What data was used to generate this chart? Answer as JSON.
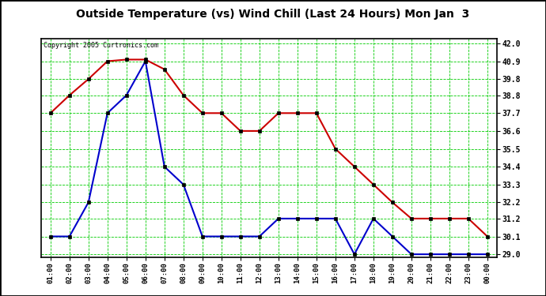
{
  "title": "Outside Temperature (vs) Wind Chill (Last 24 Hours) Mon Jan  3",
  "copyright": "Copyright 2005 Curtronics.com",
  "x_labels": [
    "01:00",
    "02:00",
    "03:00",
    "04:00",
    "05:00",
    "06:00",
    "07:00",
    "08:00",
    "09:00",
    "10:00",
    "11:00",
    "12:00",
    "13:00",
    "14:00",
    "15:00",
    "16:00",
    "17:00",
    "18:00",
    "19:00",
    "20:00",
    "21:00",
    "22:00",
    "23:00",
    "00:00"
  ],
  "outside_temp": [
    37.7,
    38.8,
    39.8,
    40.9,
    41.0,
    41.0,
    40.4,
    38.8,
    37.7,
    37.7,
    36.6,
    36.6,
    37.7,
    37.7,
    37.7,
    35.5,
    34.4,
    33.3,
    32.2,
    31.2,
    31.2,
    31.2,
    31.2,
    30.1
  ],
  "wind_chill": [
    30.1,
    30.1,
    32.2,
    37.7,
    38.8,
    40.9,
    34.4,
    33.3,
    30.1,
    30.1,
    30.1,
    30.1,
    31.2,
    31.2,
    31.2,
    31.2,
    29.0,
    31.2,
    30.1,
    29.0,
    29.0,
    29.0,
    29.0,
    29.0
  ],
  "y_ticks": [
    29.0,
    30.1,
    31.2,
    32.2,
    33.3,
    34.4,
    35.5,
    36.6,
    37.7,
    38.8,
    39.8,
    40.9,
    42.0
  ],
  "ylim": [
    28.8,
    42.3
  ],
  "bg_color": "#ffffff",
  "grid_color": "#00cc00",
  "red_color": "#cc0000",
  "blue_color": "#0000cc",
  "title_color": "#000000",
  "border_color": "#000000"
}
